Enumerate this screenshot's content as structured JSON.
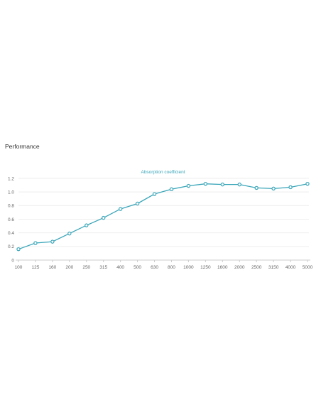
{
  "section": {
    "title": "Performance"
  },
  "colors": {
    "series": "#3aa6b9",
    "grid": "#eeeeee",
    "axis": "#cccccc",
    "tick_text": "#666666"
  },
  "chart_data": {
    "type": "line",
    "title": "Absorption coefficient",
    "xlabel": "",
    "ylabel": "",
    "categories": [
      "100",
      "125",
      "160",
      "200",
      "250",
      "315",
      "400",
      "500",
      "630",
      "800",
      "1000",
      "1250",
      "1600",
      "2000",
      "2500",
      "3150",
      "4000",
      "5000"
    ],
    "series": [
      {
        "name": "Absorption coefficient",
        "values": [
          0.16,
          0.25,
          0.27,
          0.39,
          0.51,
          0.62,
          0.75,
          0.83,
          0.97,
          1.04,
          1.09,
          1.12,
          1.11,
          1.11,
          1.06,
          1.05,
          1.07,
          1.12
        ]
      }
    ],
    "yticks": [
      "0",
      "0.2",
      "0.4",
      "0.6",
      "0.8",
      "1.0",
      "1.2"
    ],
    "ylim": [
      0,
      1.2
    ],
    "grid": true,
    "legend": "none"
  }
}
